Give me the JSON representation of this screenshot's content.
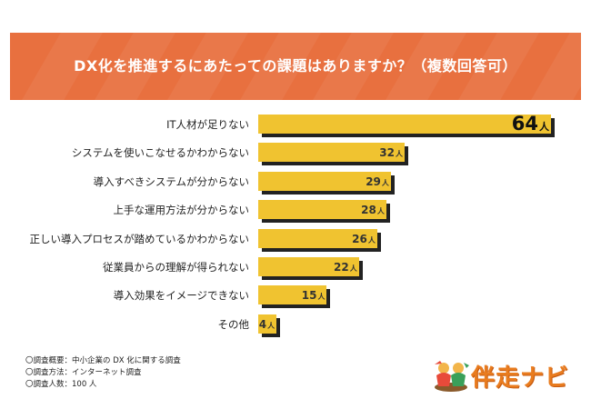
{
  "header": {
    "title": "DX化を推進するにあたっての課題はありますか？（複数回答可）",
    "bg_color": "#e8703f"
  },
  "chart_data": {
    "type": "bar",
    "orientation": "horizontal",
    "title": "DX化を推進するにあたっての課題はありますか？（複数回答可）",
    "unit": "人",
    "categories": [
      "IT人材が足りない",
      "システムを使いこなせるかわからない",
      "導入すべきシステムが分からない",
      "上手な運用方法が分からない",
      "正しい導入プロセスが踏めているかわからない",
      "従業員からの理解が得られない",
      "導入効果をイメージできない",
      "その他"
    ],
    "values": [
      64,
      32,
      29,
      28,
      26,
      22,
      15,
      4
    ],
    "value_labels": [
      "64",
      "32",
      "29",
      "28",
      "26",
      "22",
      "15",
      "4"
    ],
    "bar_color": "#f0c330",
    "shadow_color": "#222222",
    "grid": false,
    "legend": "none"
  },
  "footnotes": [
    "〇調査概要：中小企業の DX 化に関する調査",
    "〇調査方法：インターネット調査",
    "〇調査人数：100 人"
  ],
  "logo": {
    "text": "伴走ナビ",
    "icon": "runners-icon",
    "color": "#e97c1f"
  }
}
